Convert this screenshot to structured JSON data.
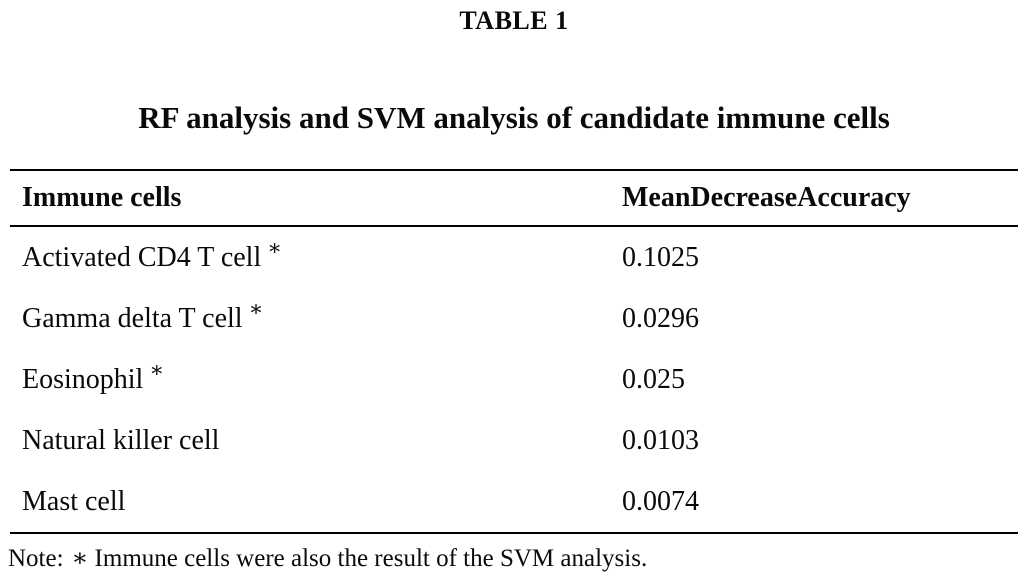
{
  "page": {
    "label": "TABLE 1",
    "title": "RF analysis and SVM analysis of candidate immune cells"
  },
  "table": {
    "columns": [
      "Immune cells",
      "MeanDecreaseAccuracy"
    ],
    "rows": [
      {
        "name": "Activated CD4 T cell",
        "marker": "∗",
        "value": "0.1025"
      },
      {
        "name": "Gamma delta T cell",
        "marker": "∗",
        "value": "0.0296"
      },
      {
        "name": "Eosinophil",
        "marker": "∗",
        "value": "0.025"
      },
      {
        "name": "Natural killer cell",
        "marker": "",
        "value": "0.0103"
      },
      {
        "name": "Mast cell",
        "marker": "",
        "value": "0.0074"
      }
    ]
  },
  "note": {
    "prefix": "Note:",
    "marker": "∗",
    "text": "Immune cells were also the result of the SVM analysis."
  }
}
